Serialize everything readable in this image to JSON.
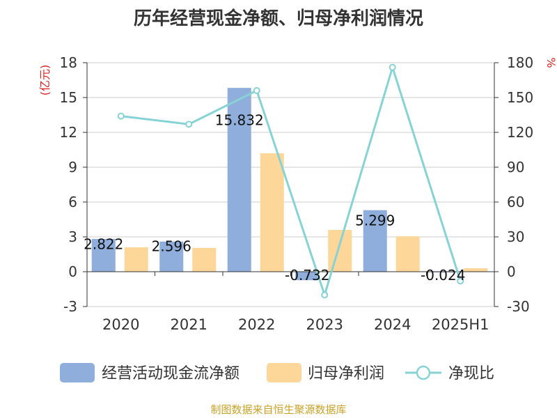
{
  "title": "历年经营现金净额、归母净利润情况",
  "source": "制图数据来自恒生聚源数据库",
  "colors": {
    "cash_flow": "#8faedb",
    "net_profit": "#fdd79a",
    "ratio": "#86d3d6",
    "unit_red": "#e02020",
    "grid": "#cccccc",
    "axis": "#333333"
  },
  "chart_data": {
    "type": "bar",
    "categories": [
      "2020",
      "2021",
      "2022",
      "2023",
      "2024",
      "2025H1"
    ],
    "y_left": {
      "unit": "(亿元)",
      "min": -3,
      "max": 18,
      "ticks": [
        -3,
        0,
        3,
        6,
        9,
        12,
        15,
        18
      ]
    },
    "y_right": {
      "unit": "%",
      "min": -30,
      "max": 180,
      "ticks": [
        -30,
        0,
        30,
        60,
        90,
        120,
        150,
        180
      ]
    },
    "series": [
      {
        "name": "经营活动现金流净额",
        "type": "bar",
        "axis": "left",
        "values": [
          2.822,
          2.596,
          15.832,
          -0.732,
          5.299,
          -0.024
        ],
        "labels": [
          "2.822",
          "2.596",
          "15.832",
          "-0.732",
          "5.299",
          "-0.024"
        ]
      },
      {
        "name": "归母净利润",
        "type": "bar",
        "axis": "left",
        "values": [
          2.1,
          2.05,
          10.2,
          3.6,
          3.05,
          0.3
        ]
      },
      {
        "name": "净现比",
        "type": "line",
        "axis": "right",
        "values": [
          134,
          127,
          156,
          -20,
          176,
          -8
        ]
      }
    ],
    "grid": true,
    "legend_position": "bottom"
  }
}
